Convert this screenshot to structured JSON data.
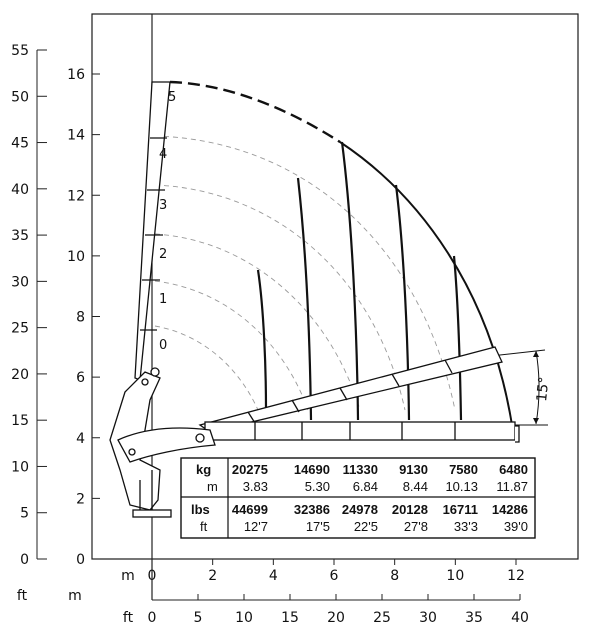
{
  "scales": {
    "ft_left": {
      "unit_label": "ft",
      "ticks": [
        "55",
        "50",
        "45",
        "40",
        "35",
        "30",
        "25",
        "20",
        "15",
        "10",
        "5",
        "0"
      ]
    },
    "m_left": {
      "unit_label": "m",
      "ticks": [
        "16",
        "14",
        "12",
        "10",
        "8",
        "6",
        "4",
        "2",
        "0"
      ]
    },
    "m_bottom": {
      "unit_label": "m",
      "ticks": [
        "0",
        "2",
        "4",
        "6",
        "8",
        "10",
        "12"
      ]
    },
    "ft_bottom": {
      "unit_label": "ft",
      "ticks": [
        "0",
        "5",
        "10",
        "15",
        "20",
        "25",
        "30",
        "35",
        "40"
      ]
    }
  },
  "extension_labels": [
    "0",
    "1",
    "2",
    "3",
    "4",
    "5"
  ],
  "angle_label": "15°",
  "load_table": {
    "kg_label": "kg",
    "kg": [
      "20275",
      "14690",
      "11330",
      "9130",
      "7580",
      "6480"
    ],
    "m_label": "m",
    "m": [
      "3.83",
      "5.30",
      "6.84",
      "8.44",
      "10.13",
      "11.87"
    ],
    "lbs_label": "lbs",
    "lbs": [
      "44699",
      "32386",
      "24978",
      "20128",
      "16711",
      "14286"
    ],
    "ft_label": "ft",
    "ft": [
      "12'7",
      "17'5",
      "22'5",
      "27'8",
      "33'3",
      "39'0"
    ]
  },
  "colors": {
    "line": "#111111",
    "dashed": "#9a9a9a",
    "frame": "#1a1a1a"
  }
}
